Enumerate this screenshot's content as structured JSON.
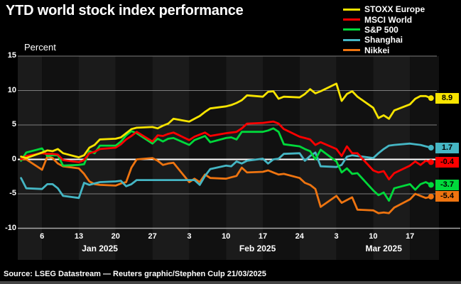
{
  "title": "YTD world stock index performance",
  "y_axis_label": "Percent",
  "source": "Source: LSEG Datastream — Reuters graphic/Stephen Culp 21/03/2025",
  "colors": {
    "background": "#000000",
    "stripe_dark": "#111111",
    "stripe_light": "#1b1b1b",
    "gridline": "#7d7d7d",
    "zero_line": "#ffffff",
    "axis_line": "#a8a8a8",
    "text": "#ffffff",
    "badge_text": "#000000"
  },
  "legend": [
    {
      "label": "STOXX Europe",
      "color": "#f7e400"
    },
    {
      "label": "MSCI World",
      "color": "#fe0000"
    },
    {
      "label": "S&P 500",
      "color": "#00d93b"
    },
    {
      "label": "Shanghai",
      "color": "#45b6c4"
    },
    {
      "label": "Nikkei",
      "color": "#ee7410"
    }
  ],
  "chart_data": {
    "type": "line",
    "title": "YTD world stock index performance",
    "xlabel": "",
    "ylabel": "Percent",
    "ylim": [
      -10,
      15
    ],
    "grid": true,
    "legend_position": "top-right",
    "y_ticks": [
      {
        "value": 15,
        "label": "15"
      },
      {
        "value": 10,
        "label": "10"
      },
      {
        "value": 5,
        "label": "5"
      },
      {
        "value": 0,
        "label": "0"
      },
      {
        "value": -5,
        "label": "-5"
      },
      {
        "value": -10,
        "label": "-10"
      }
    ],
    "x_unit": "calendar day offset from 2025-01-01",
    "x_ticks": [
      {
        "day": 5,
        "label": "6"
      },
      {
        "day": 12,
        "label": "13"
      },
      {
        "day": 19,
        "label": "20"
      },
      {
        "day": 26,
        "label": "27"
      },
      {
        "day": 33,
        "label": "3"
      },
      {
        "day": 40,
        "label": "10"
      },
      {
        "day": 47,
        "label": "17"
      },
      {
        "day": 54,
        "label": "24"
      },
      {
        "day": 61,
        "label": "3"
      },
      {
        "day": 68,
        "label": "10"
      },
      {
        "day": 75,
        "label": "17"
      }
    ],
    "months": [
      {
        "label": "Jan 2025",
        "day": 16
      },
      {
        "label": "Feb 2025",
        "day": 46
      },
      {
        "label": "Mar 2025",
        "day": 70
      }
    ],
    "week_band_starts": [
      5,
      12,
      19,
      26,
      33,
      40,
      47,
      54,
      61,
      68,
      75
    ],
    "days": [
      1,
      2,
      5,
      6,
      7,
      8,
      9,
      12,
      13,
      14,
      15,
      16,
      19,
      20,
      21,
      22,
      23,
      26,
      27,
      28,
      29,
      30,
      33,
      34,
      35,
      36,
      37,
      40,
      41,
      42,
      43,
      44,
      47,
      48,
      49,
      50,
      51,
      54,
      55,
      56,
      57,
      58,
      61,
      62,
      63,
      64,
      65,
      68,
      69,
      70,
      71,
      72,
      75,
      76,
      77,
      78,
      79
    ],
    "series": [
      {
        "name": "STOXX Europe",
        "color": "#f7e400",
        "end_label": "8.9",
        "end_value": 8.9,
        "values": [
          0.4,
          0.2,
          1.0,
          1.3,
          1.2,
          1.5,
          0.9,
          0.3,
          0.6,
          1.7,
          2.1,
          2.9,
          3.0,
          3.2,
          3.8,
          4.4,
          4.6,
          4.7,
          4.5,
          4.9,
          5.2,
          5.9,
          5.5,
          5.9,
          6.3,
          6.9,
          7.4,
          7.7,
          7.9,
          8.2,
          8.6,
          9.3,
          9.1,
          9.8,
          9.9,
          8.8,
          9.1,
          9.0,
          9.5,
          10.2,
          9.6,
          9.9,
          11.0,
          8.5,
          9.5,
          9.9,
          9.1,
          7.5,
          6.0,
          6.4,
          5.9,
          7.1,
          8.0,
          8.8,
          9.2,
          9.2,
          8.9
        ]
      },
      {
        "name": "MSCI World",
        "color": "#fe0000",
        "end_label": "-0.4",
        "end_value": -0.4,
        "values": [
          0.0,
          0.5,
          0.9,
          0.8,
          0.8,
          0.7,
          -0.1,
          -0.4,
          -0.1,
          0.9,
          1.1,
          1.5,
          1.7,
          2.2,
          2.9,
          3.4,
          4.0,
          2.6,
          3.5,
          3.4,
          3.7,
          3.9,
          2.8,
          3.3,
          3.6,
          3.9,
          3.4,
          3.8,
          3.9,
          4.0,
          4.5,
          5.2,
          5.3,
          5.4,
          5.5,
          5.2,
          4.4,
          3.3,
          3.1,
          2.9,
          2.1,
          2.5,
          1.5,
          0.5,
          1.9,
          0.9,
          0.9,
          -1.6,
          -1.9,
          -1.7,
          -2.9,
          -2.0,
          -0.9,
          -0.3,
          -0.8,
          -0.2,
          -0.4
        ]
      },
      {
        "name": "S&P 500",
        "color": "#00d93b",
        "end_label": "-3.7",
        "end_value": -3.7,
        "values": [
          -0.2,
          1.0,
          1.6,
          0.5,
          0.6,
          0.6,
          -0.9,
          -0.8,
          -0.7,
          1.2,
          0.9,
          2.0,
          2.0,
          2.6,
          3.5,
          4.1,
          3.8,
          2.3,
          3.0,
          2.6,
          3.0,
          3.1,
          2.1,
          2.8,
          3.1,
          3.4,
          2.5,
          3.1,
          3.2,
          2.9,
          4.0,
          4.0,
          4.0,
          4.2,
          4.5,
          4.0,
          2.2,
          1.9,
          1.5,
          1.2,
          0.0,
          1.4,
          -0.3,
          -1.9,
          -1.3,
          -2.1,
          -2.0,
          -4.5,
          -5.2,
          -4.8,
          -6.0,
          -4.2,
          -3.6,
          -4.4,
          -3.6,
          -3.3,
          -3.7
        ]
      },
      {
        "name": "Shanghai",
        "color": "#45b6c4",
        "end_label": "1.7",
        "end_value": 1.7,
        "values": [
          -2.7,
          -4.2,
          -4.3,
          -3.6,
          -3.6,
          -4.2,
          -5.3,
          -5.6,
          -3.4,
          -3.7,
          -3.5,
          -3.3,
          -3.2,
          -3.1,
          -3.9,
          -3.6,
          -3.0,
          -3.0,
          -3.0,
          -3.0,
          -3.0,
          -3.0,
          -3.0,
          -3.0,
          -3.7,
          -2.4,
          -1.4,
          -0.9,
          -1.0,
          -0.3,
          -0.6,
          -0.2,
          0.1,
          -0.6,
          0.0,
          0.1,
          0.8,
          0.9,
          -0.2,
          0.5,
          1.0,
          -1.0,
          -1.1,
          -0.8,
          0.4,
          0.6,
          0.5,
          0.2,
          0.9,
          1.5,
          2.0,
          2.1,
          2.3,
          2.2,
          2.1,
          1.9,
          1.7
        ]
      },
      {
        "name": "Nikkei",
        "color": "#ee7410",
        "end_label": "-5.4",
        "end_value": -5.4,
        "values": [
          0.0,
          0.0,
          -1.5,
          0.4,
          0.2,
          -0.6,
          -1.0,
          -1.3,
          -2.1,
          -3.2,
          -3.6,
          -3.7,
          -3.8,
          -3.5,
          -3.3,
          -1.2,
          0.0,
          0.2,
          -0.2,
          -0.8,
          -0.6,
          -0.5,
          -3.3,
          -2.8,
          -3.3,
          -2.2,
          -2.7,
          -2.8,
          -2.6,
          -2.4,
          -1.2,
          -1.9,
          -1.8,
          -1.6,
          -1.9,
          -2.2,
          -2.1,
          -2.7,
          -3.4,
          -3.7,
          -4.3,
          -6.9,
          -5.3,
          -6.3,
          -5.9,
          -5.5,
          -7.3,
          -7.4,
          -7.8,
          -7.7,
          -7.8,
          -7.0,
          -5.8,
          -5.0,
          -5.3,
          -5.6,
          -5.4
        ]
      }
    ]
  }
}
